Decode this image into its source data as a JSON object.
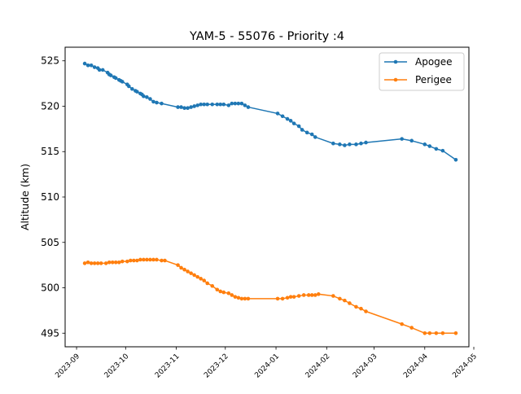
{
  "chart_data": {
    "type": "line",
    "title": "YAM-5 - 55076 - Priority :4",
    "xlabel": "",
    "ylabel": "Altitude (km)",
    "xlim": [
      "2023-08-25",
      "2024-04-28"
    ],
    "ylim": [
      493.5,
      526.5
    ],
    "x_ticks": [
      "2023-09",
      "2023-10",
      "2023-11",
      "2023-12",
      "2024-01",
      "2024-02",
      "2024-03",
      "2024-04",
      "2024-05"
    ],
    "y_ticks": [
      495,
      500,
      505,
      510,
      515,
      520,
      525
    ],
    "grid": false,
    "legend": "top-right",
    "series": [
      {
        "name": "Apogee",
        "color": "#1f77b4",
        "points": [
          [
            "2023-09-06",
            524.7
          ],
          [
            "2023-09-08",
            524.5
          ],
          [
            "2023-09-10",
            524.5
          ],
          [
            "2023-09-12",
            524.3
          ],
          [
            "2023-09-14",
            524.2
          ],
          [
            "2023-09-15",
            524.0
          ],
          [
            "2023-09-17",
            524.0
          ],
          [
            "2023-09-20",
            523.7
          ],
          [
            "2023-09-21",
            523.5
          ],
          [
            "2023-09-22",
            523.4
          ],
          [
            "2023-09-24",
            523.2
          ],
          [
            "2023-09-25",
            523.1
          ],
          [
            "2023-09-27",
            522.9
          ],
          [
            "2023-09-28",
            522.8
          ],
          [
            "2023-09-29",
            522.7
          ],
          [
            "2023-10-02",
            522.4
          ],
          [
            "2023-10-03",
            522.2
          ],
          [
            "2023-10-05",
            521.9
          ],
          [
            "2023-10-07",
            521.7
          ],
          [
            "2023-10-08",
            521.6
          ],
          [
            "2023-10-10",
            521.4
          ],
          [
            "2023-10-11",
            521.3
          ],
          [
            "2023-10-12",
            521.1
          ],
          [
            "2023-10-14",
            521.0
          ],
          [
            "2023-10-16",
            520.8
          ],
          [
            "2023-10-18",
            520.5
          ],
          [
            "2023-10-20",
            520.4
          ],
          [
            "2023-10-23",
            520.3
          ],
          [
            "2023-11-02",
            519.9
          ],
          [
            "2023-11-04",
            519.9
          ],
          [
            "2023-11-06",
            519.8
          ],
          [
            "2023-11-08",
            519.8
          ],
          [
            "2023-11-10",
            519.9
          ],
          [
            "2023-11-12",
            520.0
          ],
          [
            "2023-11-14",
            520.1
          ],
          [
            "2023-11-16",
            520.2
          ],
          [
            "2023-11-18",
            520.2
          ],
          [
            "2023-11-20",
            520.2
          ],
          [
            "2023-11-23",
            520.2
          ],
          [
            "2023-11-26",
            520.2
          ],
          [
            "2023-11-28",
            520.2
          ],
          [
            "2023-11-30",
            520.2
          ],
          [
            "2023-12-03",
            520.1
          ],
          [
            "2023-12-05",
            520.3
          ],
          [
            "2023-12-07",
            520.3
          ],
          [
            "2023-12-09",
            520.3
          ],
          [
            "2023-12-11",
            520.3
          ],
          [
            "2023-12-13",
            520.1
          ],
          [
            "2023-12-15",
            519.9
          ],
          [
            "2024-01-02",
            519.2
          ],
          [
            "2024-01-05",
            518.9
          ],
          [
            "2024-01-08",
            518.6
          ],
          [
            "2024-01-10",
            518.4
          ],
          [
            "2024-01-12",
            518.1
          ],
          [
            "2024-01-15",
            517.8
          ],
          [
            "2024-01-17",
            517.4
          ],
          [
            "2024-01-20",
            517.1
          ],
          [
            "2024-01-23",
            516.9
          ],
          [
            "2024-01-25",
            516.6
          ],
          [
            "2024-02-05",
            515.9
          ],
          [
            "2024-02-09",
            515.8
          ],
          [
            "2024-02-12",
            515.7
          ],
          [
            "2024-02-15",
            515.8
          ],
          [
            "2024-02-19",
            515.8
          ],
          [
            "2024-02-22",
            515.9
          ],
          [
            "2024-02-25",
            516.0
          ],
          [
            "2024-03-18",
            516.4
          ],
          [
            "2024-03-24",
            516.2
          ],
          [
            "2024-04-01",
            515.8
          ],
          [
            "2024-04-04",
            515.6
          ],
          [
            "2024-04-08",
            515.3
          ],
          [
            "2024-04-12",
            515.1
          ],
          [
            "2024-04-20",
            514.1
          ]
        ]
      },
      {
        "name": "Perigee",
        "color": "#ff7f0e",
        "points": [
          [
            "2023-09-06",
            502.7
          ],
          [
            "2023-09-08",
            502.8
          ],
          [
            "2023-09-10",
            502.7
          ],
          [
            "2023-09-12",
            502.7
          ],
          [
            "2023-09-14",
            502.7
          ],
          [
            "2023-09-16",
            502.7
          ],
          [
            "2023-09-19",
            502.7
          ],
          [
            "2023-09-21",
            502.8
          ],
          [
            "2023-09-23",
            502.8
          ],
          [
            "2023-09-25",
            502.8
          ],
          [
            "2023-09-27",
            502.8
          ],
          [
            "2023-09-29",
            502.9
          ],
          [
            "2023-10-02",
            502.9
          ],
          [
            "2023-10-04",
            503.0
          ],
          [
            "2023-10-06",
            503.0
          ],
          [
            "2023-10-08",
            503.0
          ],
          [
            "2023-10-10",
            503.1
          ],
          [
            "2023-10-12",
            503.1
          ],
          [
            "2023-10-14",
            503.1
          ],
          [
            "2023-10-16",
            503.1
          ],
          [
            "2023-10-18",
            503.1
          ],
          [
            "2023-10-20",
            503.1
          ],
          [
            "2023-10-23",
            503.0
          ],
          [
            "2023-10-25",
            503.0
          ],
          [
            "2023-11-02",
            502.5
          ],
          [
            "2023-11-04",
            502.2
          ],
          [
            "2023-11-06",
            502.0
          ],
          [
            "2023-11-08",
            501.8
          ],
          [
            "2023-11-10",
            501.6
          ],
          [
            "2023-11-12",
            501.4
          ],
          [
            "2023-11-14",
            501.2
          ],
          [
            "2023-11-16",
            501.0
          ],
          [
            "2023-11-18",
            500.8
          ],
          [
            "2023-11-20",
            500.5
          ],
          [
            "2023-11-23",
            500.2
          ],
          [
            "2023-11-26",
            499.8
          ],
          [
            "2023-11-28",
            499.6
          ],
          [
            "2023-11-30",
            499.5
          ],
          [
            "2023-12-03",
            499.4
          ],
          [
            "2023-12-05",
            499.2
          ],
          [
            "2023-12-07",
            499.0
          ],
          [
            "2023-12-09",
            498.9
          ],
          [
            "2023-12-11",
            498.8
          ],
          [
            "2023-12-13",
            498.8
          ],
          [
            "2023-12-15",
            498.8
          ],
          [
            "2024-01-02",
            498.8
          ],
          [
            "2024-01-05",
            498.8
          ],
          [
            "2024-01-08",
            498.9
          ],
          [
            "2024-01-10",
            499.0
          ],
          [
            "2024-01-12",
            499.0
          ],
          [
            "2024-01-15",
            499.1
          ],
          [
            "2024-01-18",
            499.2
          ],
          [
            "2024-01-21",
            499.2
          ],
          [
            "2024-01-23",
            499.2
          ],
          [
            "2024-01-25",
            499.2
          ],
          [
            "2024-01-27",
            499.3
          ],
          [
            "2024-02-05",
            499.1
          ],
          [
            "2024-02-09",
            498.8
          ],
          [
            "2024-02-12",
            498.6
          ],
          [
            "2024-02-15",
            498.3
          ],
          [
            "2024-02-19",
            497.9
          ],
          [
            "2024-02-22",
            497.7
          ],
          [
            "2024-02-25",
            497.4
          ],
          [
            "2024-03-18",
            496.0
          ],
          [
            "2024-03-24",
            495.6
          ],
          [
            "2024-04-01",
            495.0
          ],
          [
            "2024-04-04",
            495.0
          ],
          [
            "2024-04-08",
            495.0
          ],
          [
            "2024-04-12",
            495.0
          ],
          [
            "2024-04-20",
            495.0
          ]
        ]
      }
    ]
  }
}
